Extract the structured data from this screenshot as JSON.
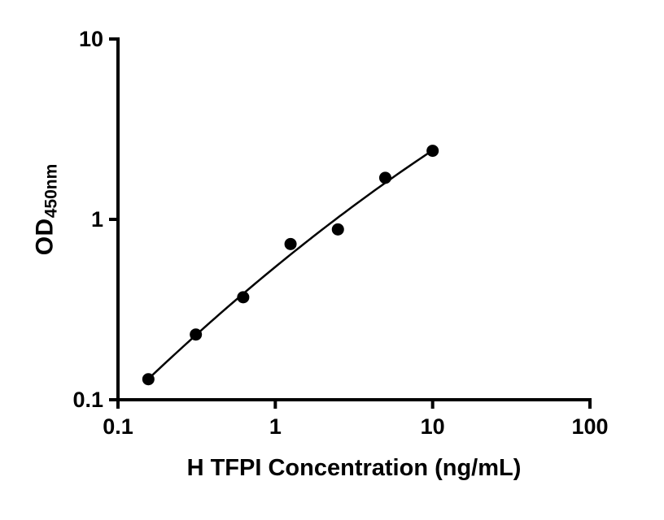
{
  "chart_data": {
    "type": "scatter",
    "title": "",
    "xlabel": "H TFPI Concentration (ng/mL)",
    "ylabel_main": "OD",
    "ylabel_sub": "450nm",
    "x_scale": "log",
    "y_scale": "log",
    "xlim": [
      0.1,
      100
    ],
    "ylim": [
      0.1,
      10
    ],
    "x_ticks": [
      0.1,
      1,
      10,
      100
    ],
    "x_tick_labels": [
      "0.1",
      "1",
      "10",
      "100"
    ],
    "y_ticks": [
      0.1,
      1,
      10
    ],
    "y_tick_labels": [
      "0.1",
      "1",
      "10"
    ],
    "points": {
      "x": [
        0.156,
        0.3125,
        0.625,
        1.25,
        2.5,
        5,
        10
      ],
      "y": [
        0.13,
        0.23,
        0.37,
        0.73,
        0.88,
        1.7,
        2.4
      ]
    },
    "fit": "quadratic-loglog",
    "grid": false,
    "legend": null,
    "marker_color": "#000000",
    "line_color": "#000000",
    "axis_color": "#000000",
    "background": "#ffffff"
  }
}
